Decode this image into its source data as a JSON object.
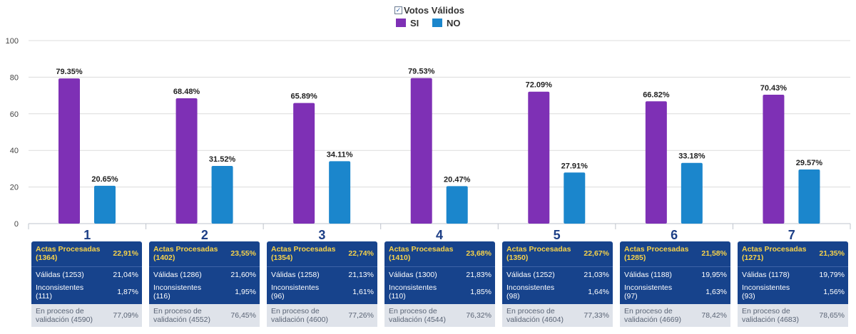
{
  "legend": {
    "title": "Votos Válidos",
    "items": [
      {
        "label": "SI",
        "color": "#7e30b5"
      },
      {
        "label": "NO",
        "color": "#1b86cc"
      }
    ]
  },
  "chart_data": {
    "type": "bar",
    "title": "Votos Válidos",
    "categories": [
      "1",
      "2",
      "3",
      "4",
      "5",
      "6",
      "7"
    ],
    "series": [
      {
        "name": "SI",
        "color": "#7e30b5",
        "values": [
          79.35,
          68.48,
          65.89,
          79.53,
          72.09,
          66.82,
          70.43
        ]
      },
      {
        "name": "NO",
        "color": "#1b86cc",
        "values": [
          20.65,
          31.52,
          34.11,
          20.47,
          27.91,
          33.18,
          29.57
        ]
      }
    ],
    "data_labels": {
      "SI": [
        "79.35%",
        "68.48%",
        "65.89%",
        "79.53%",
        "72.09%",
        "66.82%",
        "70.43%"
      ],
      "NO": [
        "20.65%",
        "31.52%",
        "34.11%",
        "20.47%",
        "27.91%",
        "33.18%",
        "29.57%"
      ]
    },
    "ylim": [
      0,
      100
    ],
    "yticks": [
      "0",
      "20",
      "40",
      "60",
      "80",
      "100"
    ],
    "grid": true,
    "legend_position": "top-center"
  },
  "tables": [
    {
      "actas_label": "Actas Procesadas",
      "actas_count": "(1364)",
      "actas_pct": "22,91%",
      "validas_label": "Válidas (1253)",
      "validas_pct": "21,04%",
      "inconsistentes_label": "Inconsistentes",
      "inconsistentes_count": "(111)",
      "inconsistentes_pct": "1,87%",
      "proceso_label": "En proceso de",
      "proceso_count": "validación (4590)",
      "proceso_pct": "77,09%"
    },
    {
      "actas_label": "Actas Procesadas",
      "actas_count": "(1402)",
      "actas_pct": "23,55%",
      "validas_label": "Válidas (1286)",
      "validas_pct": "21,60%",
      "inconsistentes_label": "Inconsistentes",
      "inconsistentes_count": "(116)",
      "inconsistentes_pct": "1,95%",
      "proceso_label": "En proceso de",
      "proceso_count": "validación (4552)",
      "proceso_pct": "76,45%"
    },
    {
      "actas_label": "Actas Procesadas",
      "actas_count": "(1354)",
      "actas_pct": "22,74%",
      "validas_label": "Válidas (1258)",
      "validas_pct": "21,13%",
      "inconsistentes_label": "Inconsistentes",
      "inconsistentes_count": "(96)",
      "inconsistentes_pct": "1,61%",
      "proceso_label": "En proceso de",
      "proceso_count": "validación (4600)",
      "proceso_pct": "77,26%"
    },
    {
      "actas_label": "Actas Procesadas",
      "actas_count": "(1410)",
      "actas_pct": "23,68%",
      "validas_label": "Válidas (1300)",
      "validas_pct": "21,83%",
      "inconsistentes_label": "Inconsistentes",
      "inconsistentes_count": "(110)",
      "inconsistentes_pct": "1,85%",
      "proceso_label": "En proceso de",
      "proceso_count": "validación (4544)",
      "proceso_pct": "76,32%"
    },
    {
      "actas_label": "Actas Procesadas",
      "actas_count": "(1350)",
      "actas_pct": "22,67%",
      "validas_label": "Válidas (1252)",
      "validas_pct": "21,03%",
      "inconsistentes_label": "Inconsistentes",
      "inconsistentes_count": "(98)",
      "inconsistentes_pct": "1,64%",
      "proceso_label": "En proceso de",
      "proceso_count": "validación (4604)",
      "proceso_pct": "77,33%"
    },
    {
      "actas_label": "Actas Procesadas",
      "actas_count": "(1285)",
      "actas_pct": "21,58%",
      "validas_label": "Válidas (1188)",
      "validas_pct": "19,95%",
      "inconsistentes_label": "Inconsistentes",
      "inconsistentes_count": "(97)",
      "inconsistentes_pct": "1,63%",
      "proceso_label": "En proceso de",
      "proceso_count": "validación (4669)",
      "proceso_pct": "78,42%"
    },
    {
      "actas_label": "Actas Procesadas",
      "actas_count": "(1271)",
      "actas_pct": "21,35%",
      "validas_label": "Válidas (1178)",
      "validas_pct": "19,79%",
      "inconsistentes_label": "Inconsistentes",
      "inconsistentes_count": "(93)",
      "inconsistentes_pct": "1,56%",
      "proceso_label": "En proceso de",
      "proceso_count": "validación (4683)",
      "proceso_pct": "78,65%"
    }
  ]
}
